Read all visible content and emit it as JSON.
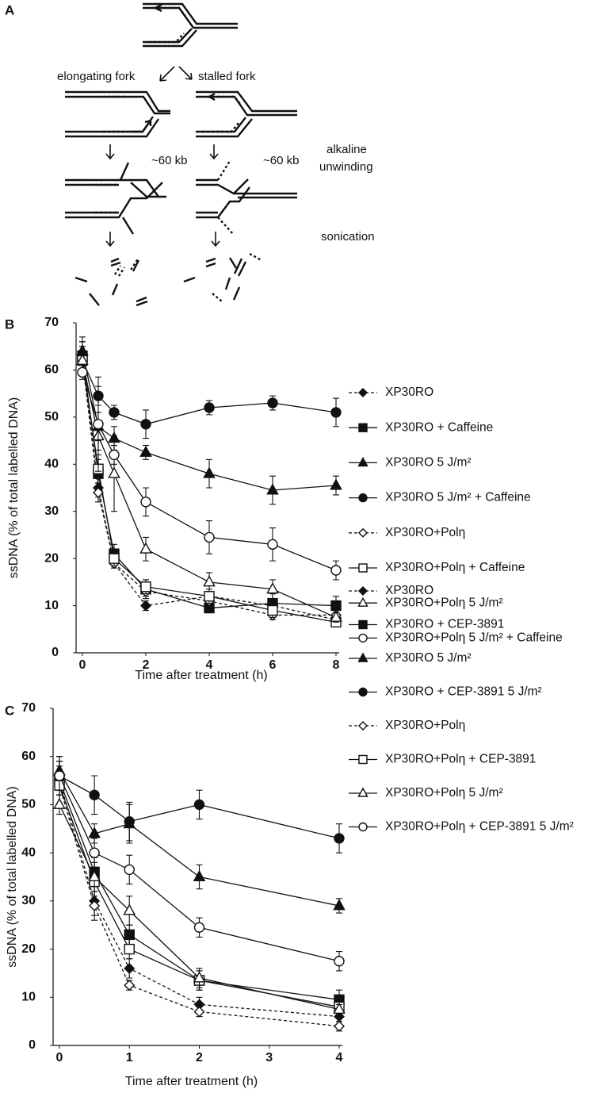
{
  "panel_labels": [
    "A",
    "B",
    "C"
  ],
  "diagram": {
    "elongating_label": "elongating fork",
    "stalled_label": "stalled fork",
    "distance_labels": [
      "~60 kb",
      "~60 kb"
    ],
    "step_labels": [
      "alkaline",
      "unwinding",
      "sonication"
    ]
  },
  "chart_data": [
    {
      "type": "line",
      "ylabel": "ssDNA (% of total labelled DNA)",
      "xlabel": "Time after treatment (h)",
      "x": [
        0,
        0.5,
        1,
        2,
        4,
        6,
        8
      ],
      "xlim": [
        0,
        8
      ],
      "xticks": [
        0,
        2,
        4,
        6,
        8
      ],
      "ylim": [
        0,
        70
      ],
      "yticks": [
        0,
        10,
        20,
        30,
        40,
        50,
        60,
        70
      ],
      "series": [
        {
          "name": "XP30RO",
          "color": "#111111",
          "marker": "diamond",
          "filled": true,
          "dashed": true,
          "values": [
            63,
            35,
            19,
            10,
            12,
            10,
            7
          ],
          "errors": [
            3,
            2,
            1,
            1,
            1,
            1,
            1
          ]
        },
        {
          "name": "XP30RO + Caffeine",
          "color": "#111111",
          "marker": "square",
          "filled": true,
          "dashed": false,
          "values": [
            63,
            38,
            21,
            13.5,
            9.5,
            10.5,
            10
          ],
          "errors": [
            3,
            3,
            2,
            2,
            1,
            2,
            2
          ]
        },
        {
          "name": "XP30RO 5 J/m²",
          "color": "#111111",
          "marker": "triangle",
          "filled": true,
          "dashed": false,
          "values": [
            64,
            48,
            45.5,
            42.5,
            38,
            34.5,
            35.5
          ],
          "errors": [
            3,
            3,
            2.5,
            1.5,
            3,
            3,
            2
          ]
        },
        {
          "name": "XP30RO 5 J/m² + Caffeine",
          "color": "#111111",
          "marker": "circle",
          "filled": true,
          "dashed": false,
          "values": [
            62,
            54.5,
            51,
            48.5,
            52,
            53,
            51
          ],
          "errors": [
            3,
            2,
            1.5,
            3,
            1.5,
            1.5,
            3
          ]
        },
        {
          "name": "XP30RO+Polη",
          "color": "#111111",
          "marker": "diamond",
          "filled": false,
          "dashed": true,
          "values": [
            62,
            34,
            19,
            13,
            11,
            8,
            8
          ],
          "errors": [
            2,
            2,
            1,
            1,
            1,
            1,
            1
          ]
        },
        {
          "name": "XP30RO+Polη + Caffeine",
          "color": "#111111",
          "marker": "square",
          "filled": false,
          "dashed": false,
          "values": [
            62,
            39,
            20,
            14,
            12,
            9,
            6.5
          ],
          "errors": [
            2,
            3,
            1.5,
            1.5,
            1.5,
            1.5,
            1
          ]
        },
        {
          "name": "XP30RO+Polη 5 J/m²",
          "color": "#111111",
          "marker": "triangle",
          "filled": false,
          "dashed": false,
          "values": [
            62,
            46,
            38,
            22,
            15,
            13.5,
            7.5
          ],
          "errors": [
            2,
            3,
            8,
            2.5,
            2,
            2,
            1
          ]
        },
        {
          "name": "XP30RO+Polη 5 J/m² + Caffeine",
          "color": "#111111",
          "marker": "circle",
          "filled": false,
          "dashed": false,
          "values": [
            59.5,
            48.5,
            42,
            32,
            24.5,
            23,
            17.5
          ],
          "errors": [
            1.5,
            10,
            2,
            3,
            3.5,
            3.5,
            2
          ]
        }
      ]
    },
    {
      "type": "line",
      "ylabel": "ssDNA (% of total labelled DNA)",
      "xlabel": "Time after treatment (h)",
      "x": [
        0,
        0.5,
        1,
        2,
        4
      ],
      "xlim": [
        0,
        4
      ],
      "xticks": [
        0,
        1,
        2,
        3,
        4
      ],
      "ylim": [
        0,
        70
      ],
      "yticks": [
        0,
        10,
        20,
        30,
        40,
        50,
        60,
        70
      ],
      "series": [
        {
          "name": "XP30RO",
          "color": "#111111",
          "marker": "diamond",
          "filled": true,
          "dashed": true,
          "values": [
            55,
            30,
            16,
            8.5,
            6
          ],
          "errors": [
            5,
            3,
            2,
            1.5,
            1
          ]
        },
        {
          "name": "XP30RO + CEP-3891",
          "color": "#111111",
          "marker": "square",
          "filled": true,
          "dashed": false,
          "values": [
            55,
            36,
            23,
            13.5,
            9.5
          ],
          "errors": [
            3,
            3,
            2,
            2,
            2
          ]
        },
        {
          "name": "XP30RO 5 J/m²",
          "color": "#111111",
          "marker": "triangle",
          "filled": true,
          "dashed": false,
          "values": [
            57,
            44,
            46,
            35,
            29
          ],
          "errors": [
            3,
            2,
            4,
            2.5,
            1.5
          ]
        },
        {
          "name": "XP30RO + CEP-3891 5 J/m²",
          "color": "#111111",
          "marker": "circle",
          "filled": true,
          "dashed": false,
          "values": [
            56,
            52,
            46.5,
            50,
            43
          ],
          "errors": [
            3,
            4,
            4,
            3,
            3
          ]
        },
        {
          "name": "XP30RO+Polη",
          "color": "#111111",
          "marker": "diamond",
          "filled": false,
          "dashed": true,
          "values": [
            54,
            29,
            12.5,
            7,
            4
          ],
          "errors": [
            2,
            3,
            1,
            1,
            1
          ]
        },
        {
          "name": "XP30RO+Polη + CEP-3891",
          "color": "#111111",
          "marker": "square",
          "filled": false,
          "dashed": false,
          "values": [
            54,
            34,
            20,
            13.5,
            8
          ],
          "errors": [
            2,
            3,
            2,
            2,
            1
          ]
        },
        {
          "name": "XP30RO+Polη 5 J/m²",
          "color": "#111111",
          "marker": "triangle",
          "filled": false,
          "dashed": false,
          "values": [
            50,
            35,
            28,
            14,
            7.5
          ],
          "errors": [
            2,
            3,
            3,
            2,
            1
          ]
        },
        {
          "name": "XP30RO+Polη + CEP-3891 5 J/m²",
          "color": "#111111",
          "marker": "circle",
          "filled": false,
          "dashed": false,
          "values": [
            56,
            40,
            36.5,
            24.5,
            17.5
          ],
          "errors": [
            3,
            3,
            3,
            2,
            2
          ]
        }
      ]
    }
  ]
}
